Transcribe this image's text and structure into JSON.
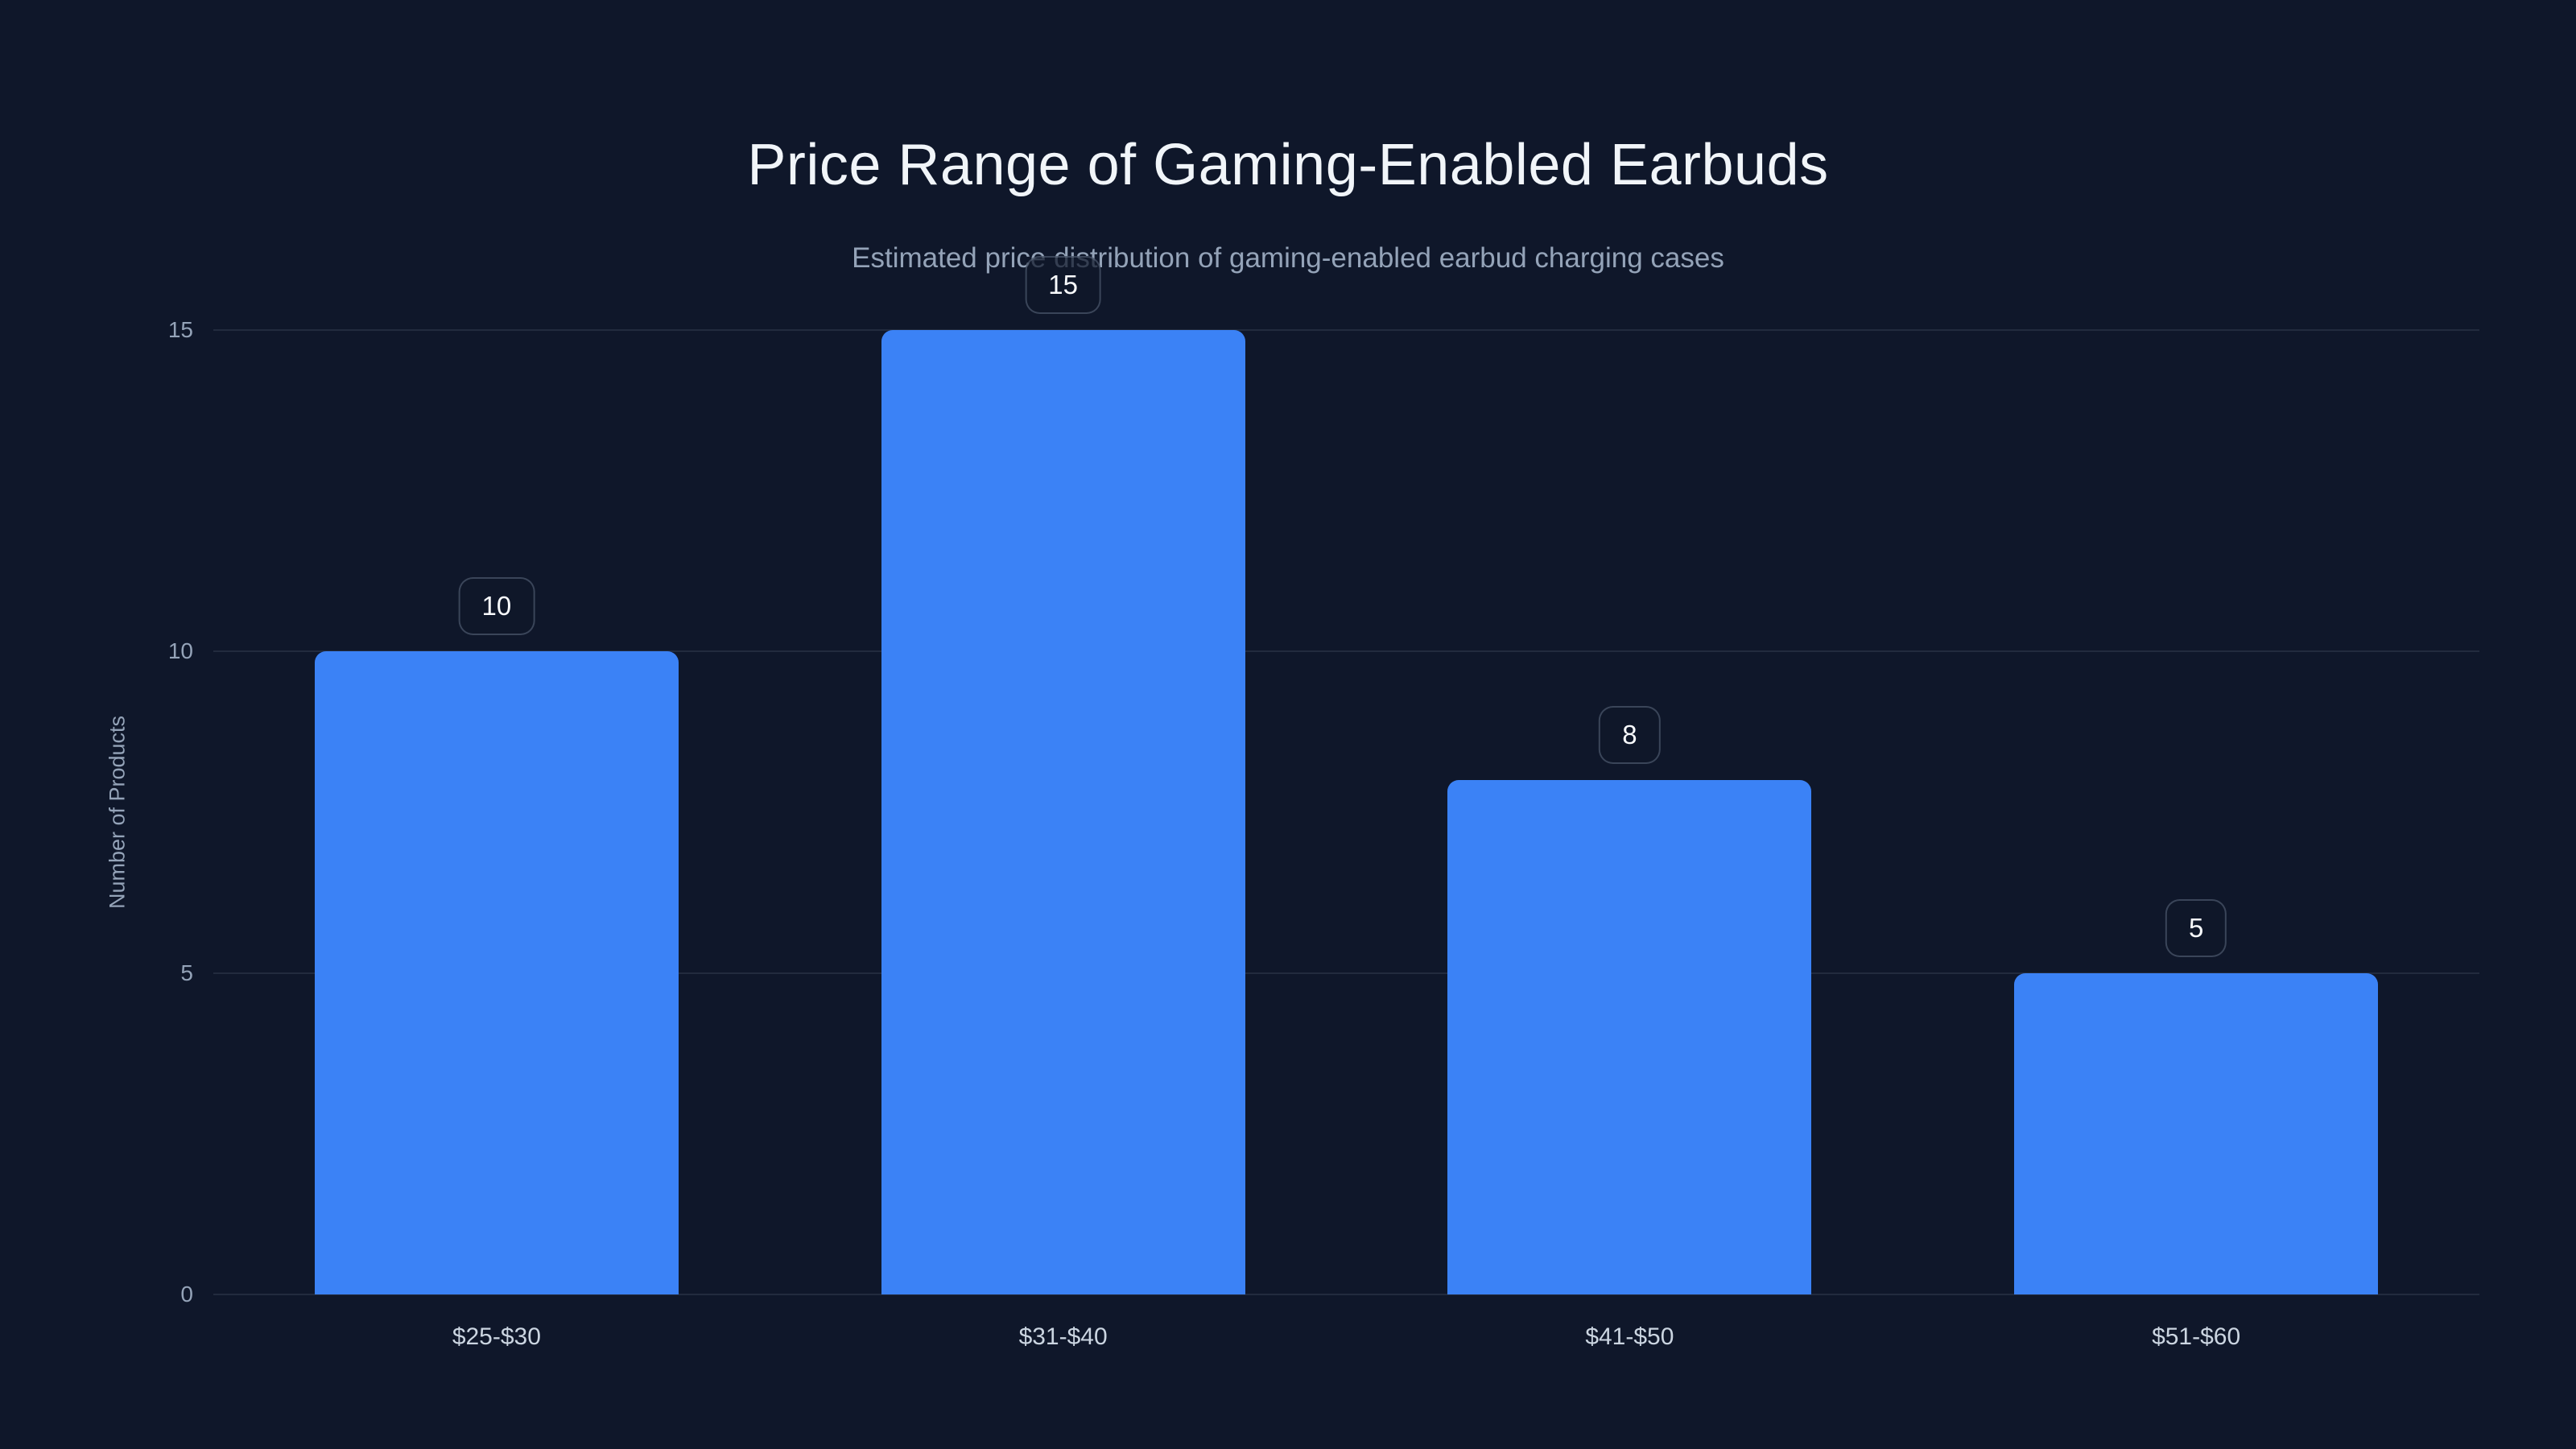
{
  "page": {
    "background_color": "#0f172a"
  },
  "chart_data": {
    "type": "bar",
    "title": "Price Range of Gaming-Enabled Earbuds",
    "subtitle": "Estimated price distribution of gaming-enabled earbud charging cases",
    "categories": [
      "$25-$30",
      "$31-$40",
      "$41-$50",
      "$51-$60"
    ],
    "values": [
      10,
      15,
      8,
      5
    ],
    "data_labels": [
      "10",
      "15",
      "8",
      "5"
    ],
    "xlabel": "",
    "ylabel": "Number of Products",
    "ylim": [
      0,
      15
    ],
    "yticks_top_to_bottom": [
      15,
      10,
      5,
      0
    ],
    "grid": "horizontal",
    "legend_position": "none",
    "bar_color": "#3b82f6",
    "grid_color": "rgba(148,163,184,0.15)",
    "title_color": "#f1f5f9",
    "subtitle_color": "#94a3b8",
    "tick_label_color": "#94a3b8",
    "category_label_color": "#cbd5e1",
    "badge_text_color": "#f8fafc"
  }
}
